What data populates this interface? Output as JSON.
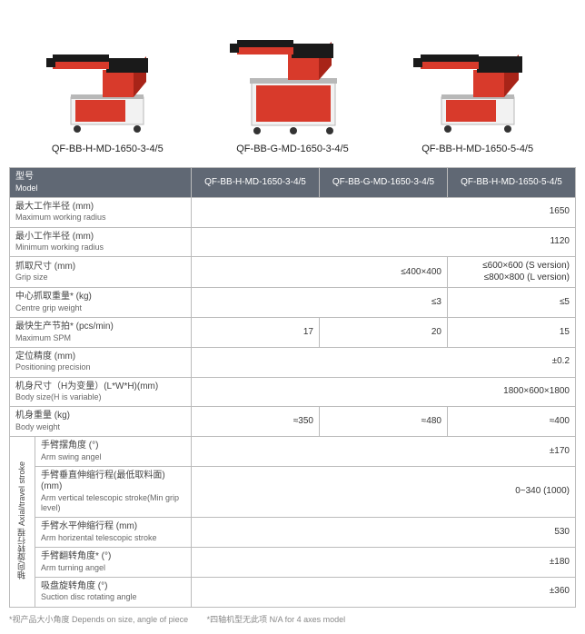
{
  "colors": {
    "header_bg": "#606874",
    "header_text": "#ffffff",
    "border": "#bbbbbb",
    "label_text": "#444444",
    "en_text": "#666666",
    "footnote_text": "#888888",
    "machine_red": "#d83a2b",
    "machine_red_dark": "#a82418",
    "machine_black": "#1a1a1a",
    "machine_white": "#f2f2f2",
    "machine_grey": "#b8b8b8",
    "machine_foot": "#333333"
  },
  "products": [
    {
      "id": "p0",
      "label": "QF-BB-H-MD-1650-3-4/5",
      "base": "short"
    },
    {
      "id": "p1",
      "label": "QF-BB-G-MD-1650-3-4/5",
      "base": "tall"
    },
    {
      "id": "p2",
      "label": "QF-BB-H-MD-1650-5-4/5",
      "base": "short"
    }
  ],
  "table": {
    "header": {
      "model_label_cn": "型号",
      "model_label_en": "Model",
      "cols": [
        "QF-BB-H-MD-1650-3-4/5",
        "QF-BB-G-MD-1650-3-4/5",
        "QF-BB-H-MD-1650-5-4/5"
      ]
    },
    "main_rows": [
      {
        "cn": "最大工作半径 (mm)",
        "en": "Maximum working radius",
        "span": 3,
        "val": "1650"
      },
      {
        "cn": "最小工作半径 (mm)",
        "en": "Minimum working radius",
        "span": 3,
        "val": "1120"
      },
      {
        "cn": "抓取尺寸 (mm)",
        "en": "Grip size",
        "spanA": 2,
        "valA": "≤400×400",
        "valB": "≤600×600 (S version)\n≤800×800 (L version)"
      },
      {
        "cn": "中心抓取重量* (kg)",
        "en": "Centre grip weight",
        "spanA": 2,
        "valA": "≤3",
        "valB": "≤5"
      },
      {
        "cn": "最快生产节拍* (pcs/min)",
        "en": "Maximum SPM",
        "v0": "17",
        "v1": "20",
        "v2": "15"
      },
      {
        "cn": "定位精度 (mm)",
        "en": "Positioning precision",
        "span": 3,
        "val": "±0.2"
      },
      {
        "cn": "机身尺寸（H为变量）(L*W*H)(mm)",
        "en": "Body size(H is variable)",
        "span": 3,
        "val": "1800×600×1800"
      },
      {
        "cn": "机身重量 (kg)",
        "en": "Body weight",
        "v0": "≈350",
        "v1": "≈480",
        "v2": "≈400"
      }
    ],
    "group": {
      "header_cn": "轴向/旋转行程",
      "header_en": "Axial/travel stroke",
      "rows": [
        {
          "cn": "手臂摆角度 (°)",
          "en": "Arm swing angel",
          "val": "±170"
        },
        {
          "cn": "手臂垂直伸缩行程(最低取料面) (mm)",
          "en": "Arm vertical telescopic stroke(Min grip level)",
          "val": "0~340 (1000)"
        },
        {
          "cn": "手臂水平伸缩行程 (mm)",
          "en": "Arm horizental telescopic stroke",
          "val": "530"
        },
        {
          "cn": "手臂翻转角度* (°)",
          "en": "Arm turning angel",
          "val": "±180"
        },
        {
          "cn": "吸盘旋转角度 (°)",
          "en": "Suction disc rotating angle",
          "val": "±360"
        }
      ]
    }
  },
  "footnotes": {
    "a": "*视产品大小角度 Depends on size, angle of piece",
    "b": "*四轴机型无此项 N/A for 4 axes model"
  }
}
